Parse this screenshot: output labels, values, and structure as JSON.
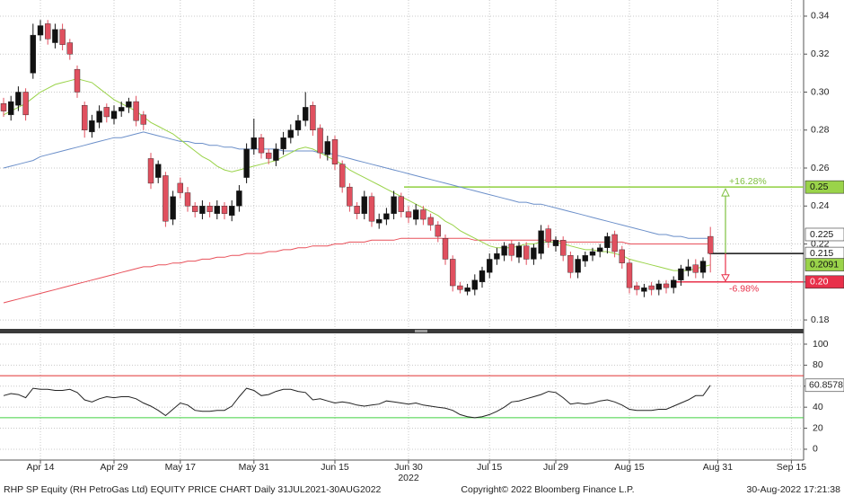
{
  "chart_data": {
    "type": "candlestick",
    "categories": [
      null,
      null,
      null,
      null,
      null,
      "Apr 14",
      null,
      null,
      null,
      null,
      null,
      null,
      null,
      null,
      null,
      "Apr 29",
      null,
      null,
      null,
      null,
      null,
      null,
      null,
      null,
      "May 17",
      null,
      null,
      null,
      null,
      null,
      null,
      null,
      null,
      null,
      "May 31",
      null,
      null,
      null,
      null,
      null,
      null,
      null,
      null,
      null,
      null,
      "Jun 15",
      null,
      null,
      null,
      null,
      null,
      null,
      null,
      null,
      null,
      "Jun 30",
      null,
      null,
      null,
      null,
      null,
      null,
      null,
      null,
      null,
      null,
      "Jul 15",
      null,
      null,
      null,
      null,
      null,
      null,
      null,
      null,
      "Jul 29",
      null,
      null,
      null,
      null,
      null,
      null,
      null,
      null,
      null,
      "Aug 15",
      null,
      null,
      null,
      null,
      null,
      null,
      null,
      null,
      null,
      null,
      null,
      "Aug 31",
      null,
      null,
      null,
      null,
      null,
      null,
      null,
      null,
      null,
      "Sep 15",
      null,
      null
    ],
    "year_label": "2022",
    "open": [
      0.294,
      0.288,
      0.293,
      0.3,
      0.31,
      0.33,
      0.336,
      0.326,
      0.333,
      0.326,
      0.312,
      0.293,
      0.279,
      0.284,
      0.292,
      0.286,
      0.29,
      0.292,
      0.295,
      0.288,
      0.265,
      0.255,
      0.256,
      0.233,
      0.252,
      0.247,
      0.24,
      0.236,
      0.24,
      0.236,
      0.24,
      0.235,
      0.24,
      0.255,
      0.27,
      0.276,
      0.268,
      0.264,
      0.27,
      0.276,
      0.28,
      0.285,
      0.293,
      0.281,
      0.267,
      0.275,
      0.262,
      0.25,
      0.24,
      0.236,
      0.245,
      0.231,
      0.233,
      0.236,
      0.245,
      0.237,
      0.233,
      0.238,
      0.234,
      0.23,
      0.223,
      0.212,
      0.198,
      0.195,
      0.196,
      0.2,
      0.205,
      0.212,
      0.214,
      0.22,
      0.213,
      0.219,
      0.212,
      0.215,
      0.228,
      0.219,
      0.222,
      0.214,
      0.205,
      0.211,
      0.214,
      0.216,
      0.218,
      0.225,
      0.217,
      0.21,
      0.198,
      0.195,
      0.198,
      0.196,
      0.199,
      0.197,
      0.201,
      0.206,
      0.209,
      0.205,
      0.224,
      null,
      null,
      null,
      null,
      null,
      null,
      null,
      null,
      null,
      null,
      null,
      null,
      null
    ],
    "high": [
      0.297,
      0.298,
      0.303,
      0.302,
      0.336,
      0.338,
      0.338,
      0.336,
      0.336,
      0.328,
      0.314,
      0.295,
      0.288,
      0.293,
      0.294,
      0.293,
      0.295,
      0.297,
      0.298,
      0.29,
      0.268,
      0.264,
      0.258,
      0.248,
      0.255,
      0.25,
      0.242,
      0.243,
      0.242,
      0.243,
      0.242,
      0.243,
      0.251,
      0.273,
      0.286,
      0.278,
      0.27,
      0.273,
      0.279,
      0.283,
      0.288,
      0.3,
      0.295,
      0.283,
      0.277,
      0.277,
      0.264,
      0.252,
      0.242,
      0.248,
      0.247,
      0.236,
      0.239,
      0.248,
      0.247,
      0.24,
      0.241,
      0.24,
      0.236,
      0.232,
      0.225,
      0.214,
      0.2,
      0.199,
      0.204,
      0.208,
      0.215,
      0.218,
      0.221,
      0.222,
      0.221,
      0.221,
      0.22,
      0.23,
      0.23,
      0.224,
      0.224,
      0.216,
      0.214,
      0.216,
      0.218,
      0.22,
      0.226,
      0.227,
      0.219,
      0.212,
      0.2,
      0.199,
      0.2,
      0.201,
      0.201,
      0.203,
      0.209,
      0.212,
      0.212,
      0.213,
      0.229,
      null,
      null,
      null,
      null,
      null,
      null,
      null,
      null,
      null,
      null,
      null,
      null,
      null
    ],
    "low": [
      0.287,
      0.285,
      0.29,
      0.285,
      0.307,
      0.327,
      0.325,
      0.323,
      0.322,
      0.317,
      0.297,
      0.276,
      0.276,
      0.281,
      0.284,
      0.283,
      0.287,
      0.289,
      0.282,
      0.28,
      0.249,
      0.252,
      0.229,
      0.23,
      0.244,
      0.237,
      0.234,
      0.233,
      0.234,
      0.233,
      0.233,
      0.232,
      0.237,
      0.252,
      0.267,
      0.265,
      0.262,
      0.261,
      0.267,
      0.273,
      0.277,
      0.282,
      0.277,
      0.265,
      0.264,
      0.259,
      0.247,
      0.237,
      0.233,
      0.233,
      0.229,
      0.228,
      0.23,
      0.233,
      0.234,
      0.231,
      0.23,
      0.23,
      0.227,
      0.221,
      0.209,
      0.195,
      0.194,
      0.193,
      0.193,
      0.197,
      0.202,
      0.209,
      0.211,
      0.211,
      0.21,
      0.209,
      0.209,
      0.212,
      0.218,
      0.216,
      0.211,
      0.202,
      0.202,
      0.208,
      0.211,
      0.213,
      0.215,
      0.213,
      0.207,
      0.194,
      0.193,
      0.192,
      0.193,
      0.193,
      0.194,
      0.194,
      0.198,
      0.203,
      0.202,
      0.202,
      0.205,
      null,
      null,
      null,
      null,
      null,
      null,
      null,
      null,
      null,
      null,
      null,
      null,
      null
    ],
    "close": [
      0.29,
      0.295,
      0.3,
      0.288,
      0.33,
      0.335,
      0.328,
      0.333,
      0.325,
      0.32,
      0.3,
      0.28,
      0.285,
      0.29,
      0.287,
      0.29,
      0.292,
      0.295,
      0.285,
      0.283,
      0.252,
      0.262,
      0.232,
      0.245,
      0.247,
      0.24,
      0.237,
      0.24,
      0.237,
      0.24,
      0.236,
      0.24,
      0.248,
      0.27,
      0.276,
      0.268,
      0.265,
      0.27,
      0.276,
      0.28,
      0.285,
      0.292,
      0.28,
      0.268,
      0.274,
      0.262,
      0.25,
      0.24,
      0.236,
      0.245,
      0.232,
      0.233,
      0.236,
      0.245,
      0.237,
      0.234,
      0.238,
      0.233,
      0.23,
      0.224,
      0.212,
      0.198,
      0.196,
      0.197,
      0.201,
      0.206,
      0.212,
      0.215,
      0.219,
      0.214,
      0.219,
      0.212,
      0.218,
      0.227,
      0.221,
      0.222,
      0.214,
      0.205,
      0.212,
      0.214,
      0.216,
      0.218,
      0.224,
      0.216,
      0.21,
      0.197,
      0.196,
      0.197,
      0.196,
      0.199,
      0.197,
      0.201,
      0.207,
      0.208,
      0.205,
      0.211,
      0.215,
      null,
      null,
      null,
      null,
      null,
      null,
      null,
      null,
      null,
      null,
      null,
      null,
      null
    ],
    "up_color": "#111111",
    "down_color": "#e0505f",
    "overlays": [
      {
        "color": "#6b8fc9",
        "values": [
          0.26,
          0.261,
          0.262,
          0.263,
          0.264,
          0.266,
          0.267,
          0.268,
          0.269,
          0.27,
          0.271,
          0.272,
          0.273,
          0.274,
          0.275,
          0.276,
          0.276,
          0.277,
          0.278,
          0.279,
          0.278,
          0.277,
          0.276,
          0.275,
          0.274,
          0.274,
          0.273,
          0.273,
          0.272,
          0.272,
          0.271,
          0.271,
          0.27,
          0.27,
          0.27,
          0.27,
          0.27,
          0.27,
          0.269,
          0.269,
          0.269,
          0.269,
          0.269,
          0.268,
          0.268,
          0.267,
          0.266,
          0.265,
          0.264,
          0.263,
          0.262,
          0.261,
          0.26,
          0.259,
          0.258,
          0.257,
          0.256,
          0.255,
          0.254,
          0.253,
          0.252,
          0.251,
          0.25,
          0.249,
          0.248,
          0.247,
          0.246,
          0.245,
          0.244,
          0.243,
          0.242,
          0.242,
          0.241,
          0.241,
          0.24,
          0.239,
          0.238,
          0.237,
          0.236,
          0.235,
          0.234,
          0.233,
          0.232,
          0.231,
          0.23,
          0.229,
          0.228,
          0.227,
          0.226,
          0.225,
          0.225,
          0.224,
          0.224,
          0.223,
          0.223,
          0.223,
          0.223,
          null,
          null,
          null,
          null,
          null,
          null,
          null,
          null,
          null,
          null,
          null,
          null,
          null
        ]
      },
      {
        "color": "#e8505a",
        "values": [
          0.189,
          0.19,
          0.191,
          0.192,
          0.193,
          0.194,
          0.195,
          0.196,
          0.197,
          0.198,
          0.199,
          0.2,
          0.201,
          0.202,
          0.203,
          0.204,
          0.205,
          0.206,
          0.207,
          0.208,
          0.208,
          0.209,
          0.209,
          0.21,
          0.21,
          0.211,
          0.211,
          0.212,
          0.212,
          0.213,
          0.213,
          0.214,
          0.214,
          0.215,
          0.215,
          0.215,
          0.216,
          0.216,
          0.217,
          0.217,
          0.218,
          0.218,
          0.219,
          0.219,
          0.219,
          0.22,
          0.22,
          0.221,
          0.221,
          0.221,
          0.222,
          0.222,
          0.222,
          0.222,
          0.223,
          0.223,
          0.223,
          0.223,
          0.223,
          0.223,
          0.223,
          0.223,
          0.223,
          0.223,
          0.222,
          0.222,
          0.222,
          0.222,
          0.222,
          0.222,
          0.222,
          0.222,
          0.222,
          0.222,
          0.222,
          0.222,
          0.221,
          0.221,
          0.221,
          0.221,
          0.221,
          0.221,
          0.221,
          0.221,
          0.221,
          0.22,
          0.22,
          0.22,
          0.22,
          0.22,
          0.22,
          0.22,
          0.22,
          0.22,
          0.22,
          0.22,
          0.22,
          null,
          null,
          null,
          null,
          null,
          null,
          null,
          null,
          null,
          null,
          null,
          null,
          null
        ]
      },
      {
        "color": "#9ad34a",
        "values": [
          0.288,
          0.29,
          0.292,
          0.294,
          0.297,
          0.3,
          0.302,
          0.304,
          0.305,
          0.306,
          0.307,
          0.306,
          0.305,
          0.302,
          0.299,
          0.296,
          0.294,
          0.292,
          0.29,
          0.287,
          0.284,
          0.282,
          0.28,
          0.278,
          0.275,
          0.272,
          0.269,
          0.266,
          0.264,
          0.261,
          0.259,
          0.258,
          0.259,
          0.26,
          0.261,
          0.262,
          0.263,
          0.264,
          0.266,
          0.268,
          0.27,
          0.271,
          0.27,
          0.268,
          0.266,
          0.264,
          0.262,
          0.259,
          0.257,
          0.255,
          0.253,
          0.251,
          0.249,
          0.247,
          0.245,
          0.243,
          0.241,
          0.239,
          0.237,
          0.235,
          0.232,
          0.23,
          0.227,
          0.225,
          0.223,
          0.221,
          0.219,
          0.218,
          0.218,
          0.218,
          0.219,
          0.22,
          0.22,
          0.221,
          0.221,
          0.221,
          0.22,
          0.219,
          0.218,
          0.217,
          0.217,
          0.216,
          0.216,
          0.215,
          0.214,
          0.212,
          0.211,
          0.21,
          0.209,
          0.208,
          0.207,
          0.206,
          0.206,
          0.206,
          0.207,
          0.208,
          0.209,
          null,
          null,
          null,
          null,
          null,
          null,
          null,
          null,
          null,
          null,
          null,
          null,
          null
        ]
      }
    ],
    "ylim": [
      0.1753,
      0.3485
    ],
    "yticks": [
      {
        "value": 0.18,
        "label": "0.18"
      },
      {
        "value": 0.2,
        "label": "0.20"
      },
      {
        "value": 0.22,
        "label": "0.22"
      },
      {
        "value": 0.24,
        "label": "0.24"
      },
      {
        "value": 0.26,
        "label": "0.26"
      },
      {
        "value": 0.28,
        "label": "0.28"
      },
      {
        "value": 0.3,
        "label": "0.30"
      },
      {
        "value": 0.32,
        "label": "0.32"
      },
      {
        "value": 0.34,
        "label": "0.34"
      }
    ],
    "grid": true,
    "price_labels": [
      {
        "value": 0.25,
        "color": "#9ad34a",
        "text_color": "#111111"
      },
      {
        "value": 0.225,
        "color": "#ffffff",
        "text_color": "#111111"
      },
      {
        "value": 0.215,
        "color": "#ffffff",
        "text_color": "#111111"
      },
      {
        "value": 0.2091,
        "color": "#9ad34a",
        "text_color": "#111111"
      },
      {
        "value": 0.2,
        "label": "0.20",
        "color": "#e8304a",
        "text_color": "#ffffff"
      }
    ],
    "annotations": [
      {
        "text": "+16.28%",
        "color": "#7fc040"
      },
      {
        "text": "-6.98%",
        "color": "#e8304a"
      }
    ],
    "rsi": {
      "color": "#222222",
      "values": [
        51,
        53,
        52,
        49,
        58,
        57,
        57,
        56,
        56,
        57,
        54,
        47,
        45,
        48,
        50,
        49,
        50,
        50,
        48,
        44,
        41,
        37,
        32,
        38,
        44,
        42,
        37,
        36,
        36,
        37,
        37,
        41,
        50,
        58,
        56,
        51,
        52,
        55,
        57,
        57,
        55,
        54,
        47,
        48,
        46,
        44,
        45,
        44,
        42,
        41,
        42,
        43,
        46,
        45,
        44,
        43,
        44,
        42,
        41,
        40,
        39,
        37,
        33,
        31,
        30,
        31,
        33,
        36,
        40,
        45,
        46,
        48,
        50,
        52,
        55,
        54,
        49,
        43,
        44,
        43,
        44,
        46,
        47,
        45,
        42,
        38,
        37,
        37,
        37,
        38,
        38,
        41,
        44,
        47,
        51,
        51,
        60.8578,
        null,
        null,
        null,
        null,
        null,
        null,
        null,
        null,
        null,
        null,
        null,
        null,
        null
      ],
      "ylim": [
        -10.3,
        109.4
      ],
      "yticks": [
        0,
        20,
        40,
        60,
        80,
        100
      ],
      "levels": [
        {
          "value": 70,
          "color": "#e03030"
        },
        {
          "value": 30,
          "color": "#40d040"
        }
      ]
    },
    "footer": {
      "left": "RHP SP Equity (RH PetroGas Ltd) EQUITY PRICE CHART  Daily 31JUL2021-30AUG2022",
      "center": "Copyright© 2022 Bloomberg Finance L.P.",
      "right": "30-Aug-2022 17:21:38"
    }
  }
}
